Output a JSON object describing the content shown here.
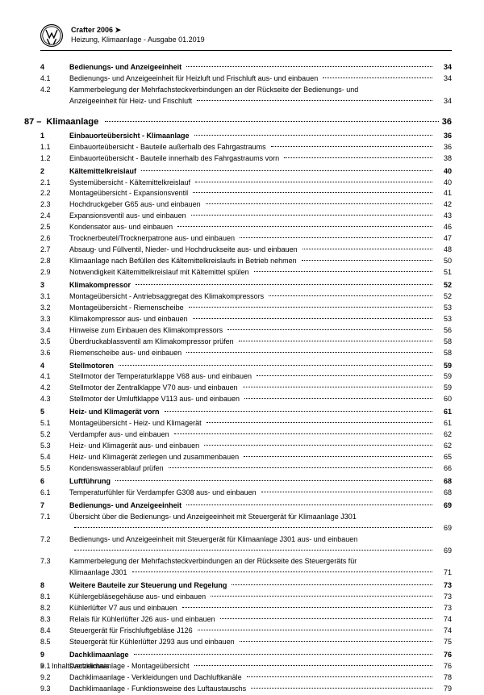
{
  "header": {
    "vehicle": "Crafter 2006 ➤",
    "subtitle": "Heizung, Klimaanlage - Ausgabe 01.2019"
  },
  "pre_chapter": [
    {
      "num": "4",
      "title": "Bedienungs- und Anzeigeeinheit",
      "page": "34",
      "bold": true
    },
    {
      "num": "4.1",
      "title": "Bedienungs- und Anzeigeeinheit für Heizluft und Frischluft aus- und einbauen",
      "page": "34"
    },
    {
      "num": "4.2",
      "title": "Kammerbelegung der Mehrfachsteckverbindungen an der Rückseite der Bedienungs- und",
      "cont": "Anzeigeeinheit für Heiz- und Frischluft",
      "page": "34"
    }
  ],
  "chapter": {
    "num": "87 –",
    "title": "Klimaanlage",
    "page": "36"
  },
  "entries": [
    {
      "num": "1",
      "title": "Einbauorteübersicht - Klimaanlage",
      "page": "36",
      "bold": true
    },
    {
      "num": "1.1",
      "title": "Einbauorteübersicht - Bauteile außerhalb des Fahrgastraums",
      "page": "36"
    },
    {
      "num": "1.2",
      "title": "Einbauorteübersicht - Bauteile innerhalb des Fahrgastraums vorn",
      "page": "38"
    },
    {
      "num": "2",
      "title": "Kältemittelkreislauf",
      "page": "40",
      "bold": true,
      "spacer": true
    },
    {
      "num": "2.1",
      "title": "Systemübersicht - Kältemittelkreislauf",
      "page": "40"
    },
    {
      "num": "2.2",
      "title": "Montageübersicht - Expansionsventil",
      "page": "41"
    },
    {
      "num": "2.3",
      "title": "Hochdruckgeber G65 aus- und einbauen",
      "page": "42"
    },
    {
      "num": "2.4",
      "title": "Expansionsventil aus- und einbauen",
      "page": "43"
    },
    {
      "num": "2.5",
      "title": "Kondensator aus- und einbauen",
      "page": "46"
    },
    {
      "num": "2.6",
      "title": "Trocknerbeutel/Trocknerpatrone aus- und einbauen",
      "page": "47"
    },
    {
      "num": "2.7",
      "title": "Absaug- und Füllventil, Nieder- und Hochdruckseite aus- und einbauen",
      "page": "48"
    },
    {
      "num": "2.8",
      "title": "Klimaanlage nach Befüllen des Kältemittelkreislaufs in Betrieb nehmen",
      "page": "50"
    },
    {
      "num": "2.9",
      "title": "Notwendigkeit Kältemittelkreislauf mit Kältemittel spülen",
      "page": "51"
    },
    {
      "num": "3",
      "title": "Klimakompressor",
      "page": "52",
      "bold": true,
      "spacer": true
    },
    {
      "num": "3.1",
      "title": "Montageübersicht - Antriebsaggregat des Klimakompressors",
      "page": "52"
    },
    {
      "num": "3.2",
      "title": "Montageübersicht - Riemenscheibe",
      "page": "53"
    },
    {
      "num": "3.3",
      "title": "Klimakompressor aus- und einbauen",
      "page": "53"
    },
    {
      "num": "3.4",
      "title": "Hinweise zum Einbauen des Klimakompressors",
      "page": "56"
    },
    {
      "num": "3.5",
      "title": "Überdruckablassventil am Klimakompressor prüfen",
      "page": "58"
    },
    {
      "num": "3.6",
      "title": "Riemenscheibe aus- und einbauen",
      "page": "58"
    },
    {
      "num": "4",
      "title": "Stellmotoren",
      "page": "59",
      "bold": true,
      "spacer": true
    },
    {
      "num": "4.1",
      "title": "Stellmotor der Temperaturklappe V68 aus- und einbauen",
      "page": "59"
    },
    {
      "num": "4.2",
      "title": "Stellmotor der Zentralklappe V70 aus- und einbauen",
      "page": "59"
    },
    {
      "num": "4.3",
      "title": "Stellmotor der Umluftklappe V113 aus- und einbauen",
      "page": "60"
    },
    {
      "num": "5",
      "title": "Heiz- und Klimagerät vorn",
      "page": "61",
      "bold": true,
      "spacer": true
    },
    {
      "num": "5.1",
      "title": "Montageübersicht - Heiz- und Klimagerät",
      "page": "61"
    },
    {
      "num": "5.2",
      "title": "Verdampfer aus- und einbauen",
      "page": "62"
    },
    {
      "num": "5.3",
      "title": "Heiz- und Klimagerät aus- und einbauen",
      "page": "62"
    },
    {
      "num": "5.4",
      "title": "Heiz- und Klimagerät zerlegen und zusammenbauen",
      "page": "65"
    },
    {
      "num": "5.5",
      "title": "Kondenswasserablauf prüfen",
      "page": "66"
    },
    {
      "num": "6",
      "title": "Luftführung",
      "page": "68",
      "bold": true,
      "spacer": true
    },
    {
      "num": "6.1",
      "title": "Temperaturfühler für Verdampfer G308 aus- und einbauen",
      "page": "68"
    },
    {
      "num": "7",
      "title": "Bedienungs- und Anzeigeeinheit",
      "page": "69",
      "bold": true,
      "spacer": true
    },
    {
      "num": "7.1",
      "title": "Übersicht über die Bedienungs- und Anzeigeeinheit mit Steuergerät für Klimaanlage J301",
      "page": "69",
      "tight": true
    },
    {
      "num": "7.2",
      "title": "Bedienungs- und Anzeigeeinheit mit Steuergerät für Klimaanlage J301 aus- und einbauen",
      "page": "69",
      "tight": true
    },
    {
      "num": "7.3",
      "title": "Kammerbelegung der Mehrfachsteckverbindungen an der Rückseite des Steuergeräts für",
      "cont": "Klimaanlage J301",
      "page": "71"
    },
    {
      "num": "8",
      "title": "Weitere Bauteile zur Steuerung und Regelung",
      "page": "73",
      "bold": true,
      "spacer": true
    },
    {
      "num": "8.1",
      "title": "Kühlergebläsegehäuse aus- und einbauen",
      "page": "73"
    },
    {
      "num": "8.2",
      "title": "Kühlerlüfter V7 aus und einbauen",
      "page": "73"
    },
    {
      "num": "8.3",
      "title": "Relais für Kühlerlüfter J26 aus- und einbauen",
      "page": "74"
    },
    {
      "num": "8.4",
      "title": "Steuergerät für Frischluftgebläse J126",
      "page": "74"
    },
    {
      "num": "8.5",
      "title": "Steuergerät für Kühlerlüfter J293 aus und einbauen",
      "page": "75"
    },
    {
      "num": "9",
      "title": "Dachklimaanlage",
      "page": "76",
      "bold": true,
      "spacer": true
    },
    {
      "num": "9.1",
      "title": "Dachklimaanlage - Montageübersicht",
      "page": "76"
    },
    {
      "num": "9.2",
      "title": "Dachklimaanlage - Verkleidungen und Dachluftkanäle",
      "page": "78"
    },
    {
      "num": "9.3",
      "title": "Dachklimaanlage - Funktionsweise des Luftaustauschs",
      "page": "79"
    }
  ],
  "footer": {
    "pagenum": "ii",
    "label": "Inhaltsverzeichnis"
  }
}
